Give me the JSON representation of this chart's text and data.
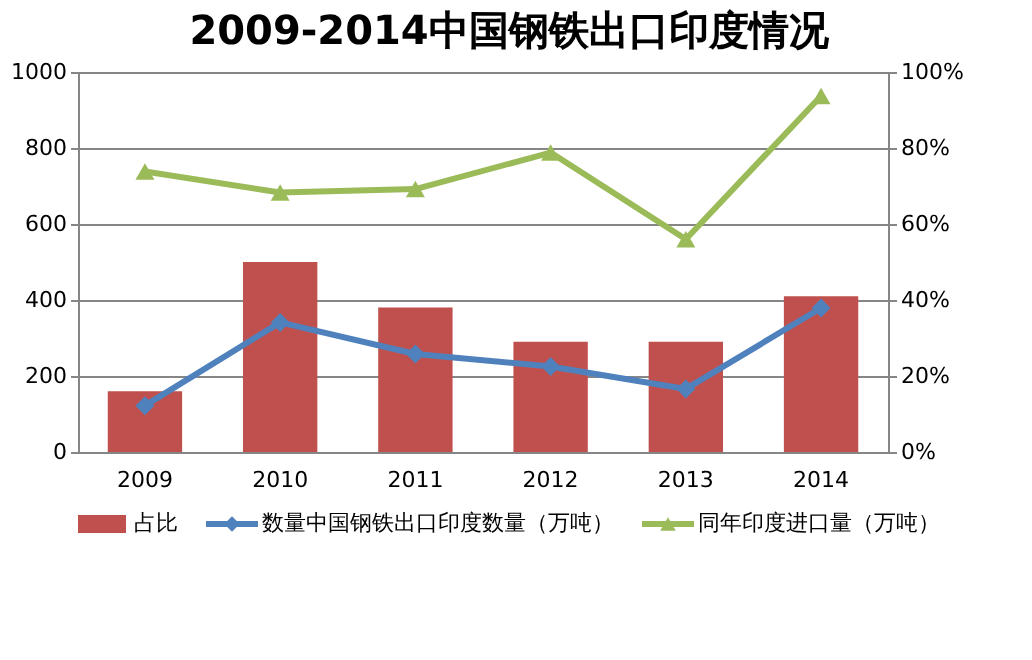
{
  "chart_data": {
    "type": "bar",
    "title": "2009-2014中国钢铁出口印度情况",
    "categories": [
      "2009",
      "2010",
      "2011",
      "2012",
      "2013",
      "2014"
    ],
    "series": [
      {
        "name": "占比",
        "axis": "y2",
        "color": "#c0504d",
        "values": [
          16,
          50,
          38,
          29,
          29,
          41
        ]
      },
      {
        "name": "数量中国钢铁出口印度数量（万吨）",
        "type": "line",
        "marker": "diamond",
        "color": "#4f81bd",
        "values": [
          122,
          341,
          258,
          225,
          166,
          379
        ]
      },
      {
        "name": "同年印度进口量（万吨）",
        "type": "line",
        "marker": "triangle",
        "color": "#9bbb59",
        "values": [
          738,
          683,
          692,
          788,
          560,
          937
        ]
      }
    ],
    "ylim": [
      0,
      1000
    ],
    "yticks": [
      0,
      200,
      400,
      600,
      800,
      1000
    ],
    "y2lim": [
      0,
      100
    ],
    "y2ticks": [
      {
        "value": 0,
        "label": "0%"
      },
      {
        "value": 20,
        "label": "20%"
      },
      {
        "value": 40,
        "label": "40%"
      },
      {
        "value": 60,
        "label": "60%"
      },
      {
        "value": 80,
        "label": "80%"
      },
      {
        "value": 100,
        "label": "100%"
      }
    ],
    "grid": "y",
    "legend": "bottom"
  }
}
